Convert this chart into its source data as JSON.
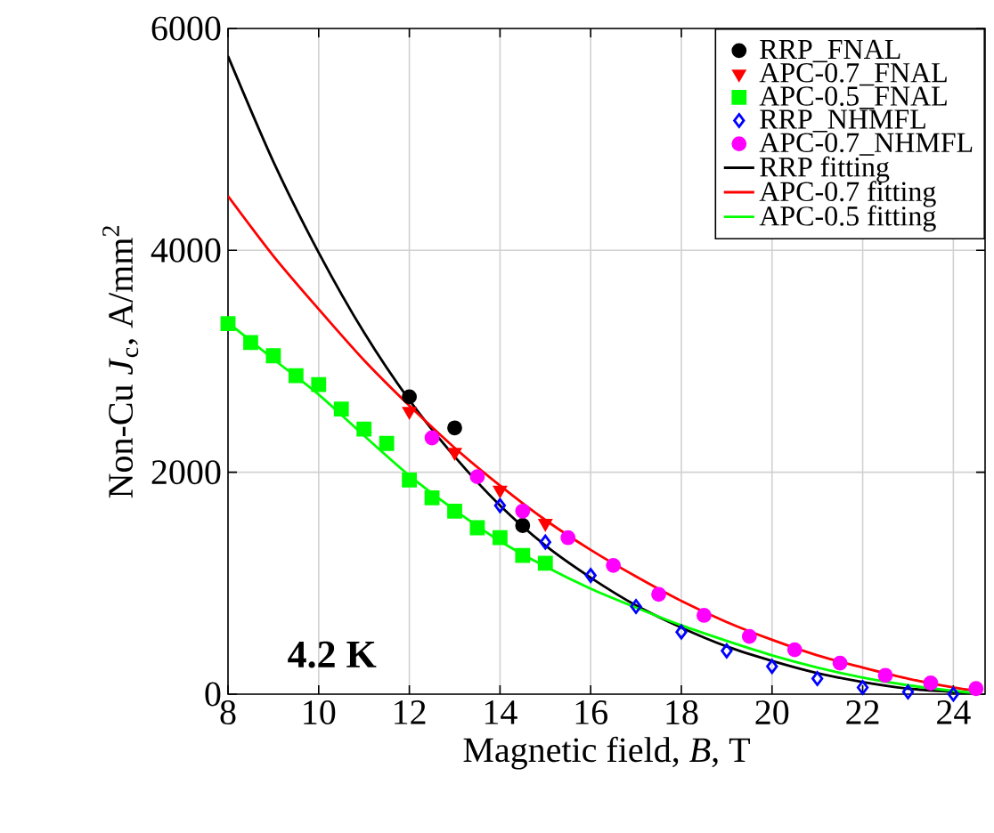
{
  "chart_data": {
    "type": "scatter",
    "xlabel": "Magnetic field, *B*, T",
    "ylabel": "Non-Cu *J*$_{c}$, A/mm$^{2}$",
    "annotations": [
      "**4.2 K**"
    ],
    "xlim": [
      8,
      24.7
    ],
    "ylim": [
      0,
      6000
    ],
    "xticks": [
      8,
      10,
      12,
      14,
      16,
      18,
      20,
      22,
      24
    ],
    "yticks": [
      0,
      2000,
      4000,
      6000
    ],
    "grid": true,
    "legend": "top right",
    "series": [
      {
        "name": "RRP_FNAL",
        "marker": "circle",
        "color": "#000000",
        "x": [
          12,
          13,
          13.5,
          14.5
        ],
        "values": [
          2680,
          2400,
          null,
          1520
        ]
      },
      {
        "name": "APC-0.7_FNAL",
        "marker": "triangle",
        "color": "#ff0000",
        "x": [
          12,
          13,
          14,
          15
        ],
        "values": [
          2550,
          2180,
          1840,
          1540
        ]
      },
      {
        "name": "APC-0.5_FNAL",
        "marker": "square",
        "color": "#00ff00",
        "x": [
          8,
          8.5,
          9,
          9.5,
          10,
          10.5,
          11,
          11.5,
          12,
          12.5,
          13,
          13.5,
          14,
          14.5,
          15
        ],
        "values": [
          3340,
          3170,
          3050,
          2870,
          2790,
          2570,
          2390,
          2260,
          1930,
          1770,
          1650,
          1500,
          1410,
          1250,
          1180
        ]
      },
      {
        "name": "RRP_NHMFL",
        "marker": "diamond",
        "color": "#0000ff",
        "x": [
          14,
          15,
          16,
          17,
          18,
          19,
          20,
          21,
          22,
          23,
          24
        ],
        "values": [
          1700,
          1370,
          1070,
          790,
          560,
          390,
          250,
          140,
          60,
          20,
          0
        ]
      },
      {
        "name": "APC-0.7_NHMFL",
        "marker": "circle",
        "color": "#ff00ff",
        "x": [
          12.5,
          13.5,
          14.5,
          15.5,
          16.5,
          17.5,
          18.5,
          19.5,
          20.5,
          21.5,
          22.5,
          23.5,
          24.5
        ],
        "values": [
          2310,
          1960,
          1650,
          1410,
          1160,
          900,
          710,
          520,
          400,
          280,
          170,
          100,
          50
        ]
      },
      {
        "name": "RRP fitting",
        "type": "line",
        "marker": "none",
        "color": "#000000",
        "x": [
          8,
          9,
          10,
          11,
          12,
          13,
          14,
          15,
          16,
          17,
          18,
          19,
          20,
          21,
          22,
          23,
          24,
          24.5
        ],
        "values": [
          5750,
          4800,
          3980,
          3260,
          2650,
          2140,
          1700,
          1340,
          1050,
          800,
          600,
          430,
          300,
          190,
          110,
          50,
          20,
          0
        ]
      },
      {
        "name": "APC-0.7 fitting",
        "type": "line",
        "marker": "none",
        "color": "#ff0000",
        "x": [
          8,
          9,
          10,
          11,
          12,
          13,
          14,
          15,
          16,
          17,
          18,
          19,
          20,
          21,
          22,
          23,
          24,
          24.5
        ],
        "values": [
          4490,
          3950,
          3470,
          3010,
          2600,
          2220,
          1880,
          1570,
          1300,
          1060,
          840,
          650,
          490,
          350,
          240,
          140,
          60,
          30
        ]
      },
      {
        "name": "APC-0.5 fitting",
        "type": "line",
        "marker": "none",
        "color": "#00ff00",
        "x": [
          8,
          9,
          10,
          11,
          12,
          13,
          14,
          15,
          16,
          17,
          18,
          19,
          20,
          21,
          22,
          23,
          24,
          24.5
        ],
        "values": [
          3350,
          3020,
          2700,
          2330,
          1970,
          1660,
          1380,
          1150,
          950,
          780,
          620,
          480,
          350,
          240,
          150,
          80,
          30,
          10
        ]
      }
    ]
  }
}
